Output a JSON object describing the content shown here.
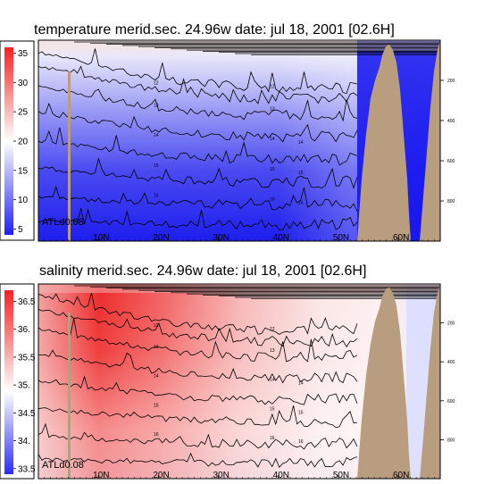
{
  "chart_data": [
    {
      "type": "heatmap",
      "title": "temperature merid.sec. 24.96w   date: jul 18, 2001   [02.6H]",
      "run_label": "ATLd0.08",
      "colorbar": {
        "ticks": [
          "35",
          "30",
          "25",
          "20",
          "15",
          "10",
          "5"
        ],
        "range": [
          4,
          36
        ],
        "colors": [
          "#1f1fff",
          "#ffffff",
          "#ff1f1f"
        ]
      },
      "x_ticks": [
        "10N",
        "20N",
        "30N",
        "40N",
        "50N",
        "60N"
      ],
      "depth_ticks": [
        "200",
        "400",
        "600",
        "800"
      ],
      "contour_labels": [
        "12",
        "13",
        "14",
        "15",
        "16"
      ],
      "colors": {
        "land": "#b99d7f",
        "deep_water": "#1111ee"
      }
    },
    {
      "type": "heatmap",
      "title": "salinity merid.sec. 24.96w   date: jul 18, 2001   [02.6H]",
      "run_label": "ATLd0.08",
      "colorbar": {
        "ticks": [
          "36.5",
          "36.",
          "35.5",
          "35.",
          "34.5",
          "34.",
          "33.5"
        ],
        "range": [
          33.4,
          36.7
        ],
        "colors": [
          "#2a2aff",
          "#ffffff",
          "#ff1f1f"
        ]
      },
      "x_ticks": [
        "10N",
        "20N",
        "30N",
        "40N",
        "50N",
        "60N"
      ],
      "depth_ticks": [
        "200",
        "400",
        "600",
        "800"
      ],
      "contour_labels": [
        "12",
        "13",
        "14",
        "15",
        "16"
      ],
      "colors": {
        "land": "#b99d7f",
        "deep_water": "#d8dcff"
      }
    }
  ]
}
